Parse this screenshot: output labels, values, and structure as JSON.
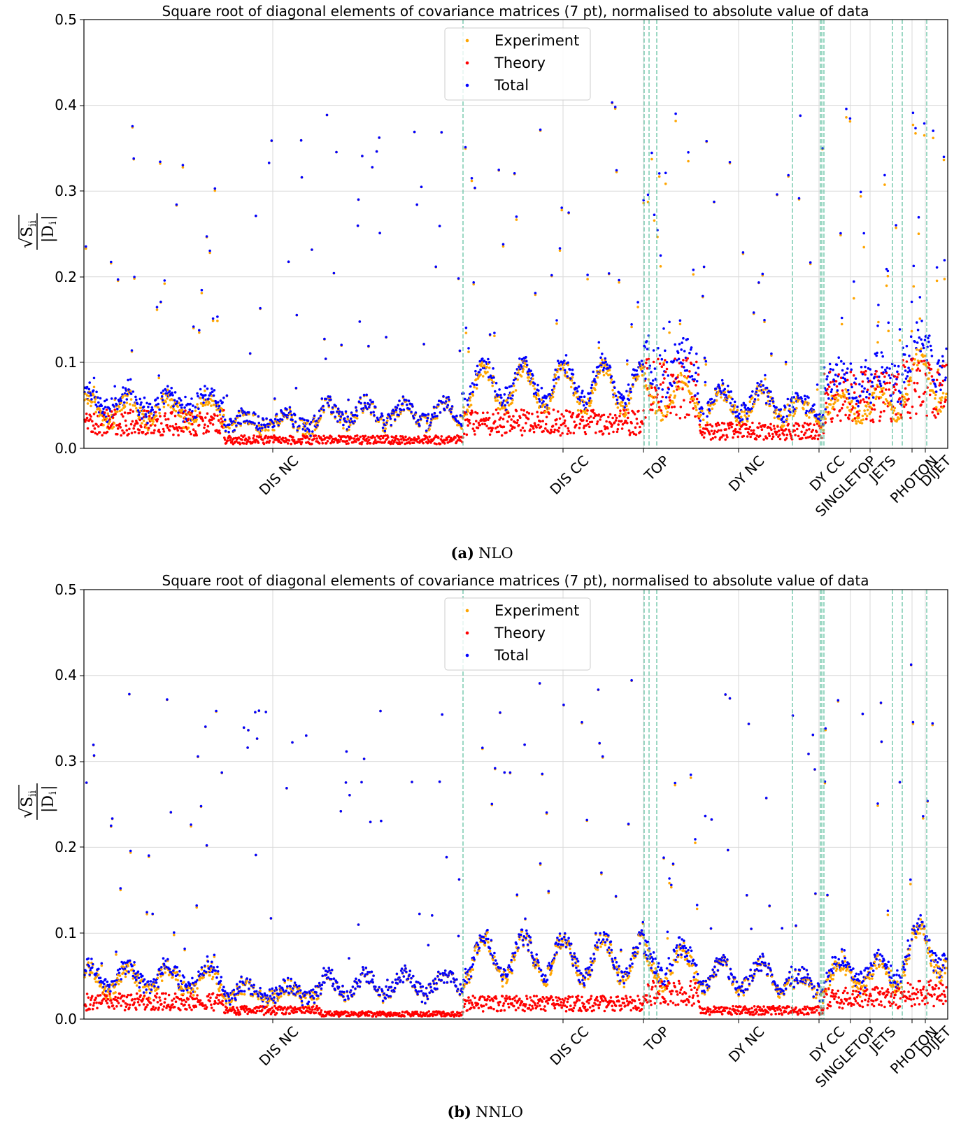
{
  "chart_data": [
    {
      "type": "scatter",
      "title": "Square root of diagonal elements of covariance matrices (7 pt), normalised to absolute value of data",
      "ylabel_num": "S",
      "ylabel_num_sub": "ii",
      "ylabel_den": "|D",
      "ylabel_den_sub": "i",
      "ylabel_den_close": "|",
      "ylim": [
        0,
        0.5
      ],
      "y_ticks": [
        "0.0",
        "0.1",
        "0.2",
        "0.3",
        "0.4",
        "0.5"
      ],
      "grid": true,
      "legend_position": "top-center",
      "series": [
        {
          "name": "Experiment",
          "color": "#ffa500"
        },
        {
          "name": "Theory",
          "color": "#ff0000"
        },
        {
          "name": "Total",
          "color": "#0000ff"
        }
      ],
      "categories": [
        "DIS NC",
        "DIS CC",
        "TOP",
        "DY NC",
        "DY CC",
        "SINGLETOP",
        "JETS",
        "PHOTON",
        "DIJET"
      ],
      "caption_label": "(a)",
      "caption_text": "NLO"
    },
    {
      "type": "scatter",
      "title": "Square root of diagonal elements of covariance matrices (7 pt), normalised to absolute value of data",
      "ylabel_num": "S",
      "ylabel_num_sub": "ii",
      "ylabel_den": "|D",
      "ylabel_den_sub": "i",
      "ylabel_den_close": "|",
      "ylim": [
        0,
        0.5
      ],
      "y_ticks": [
        "0.0",
        "0.1",
        "0.2",
        "0.3",
        "0.4",
        "0.5"
      ],
      "grid": true,
      "legend_position": "top-center",
      "series": [
        {
          "name": "Experiment",
          "color": "#ffa500"
        },
        {
          "name": "Theory",
          "color": "#ff0000"
        },
        {
          "name": "Total",
          "color": "#0000ff"
        }
      ],
      "categories": [
        "DIS NC",
        "DIS CC",
        "TOP",
        "DY NC",
        "DY CC",
        "SINGLETOP",
        "JETS",
        "PHOTON",
        "DIJET"
      ],
      "caption_label": "(b)",
      "caption_text": "NNLO"
    }
  ]
}
